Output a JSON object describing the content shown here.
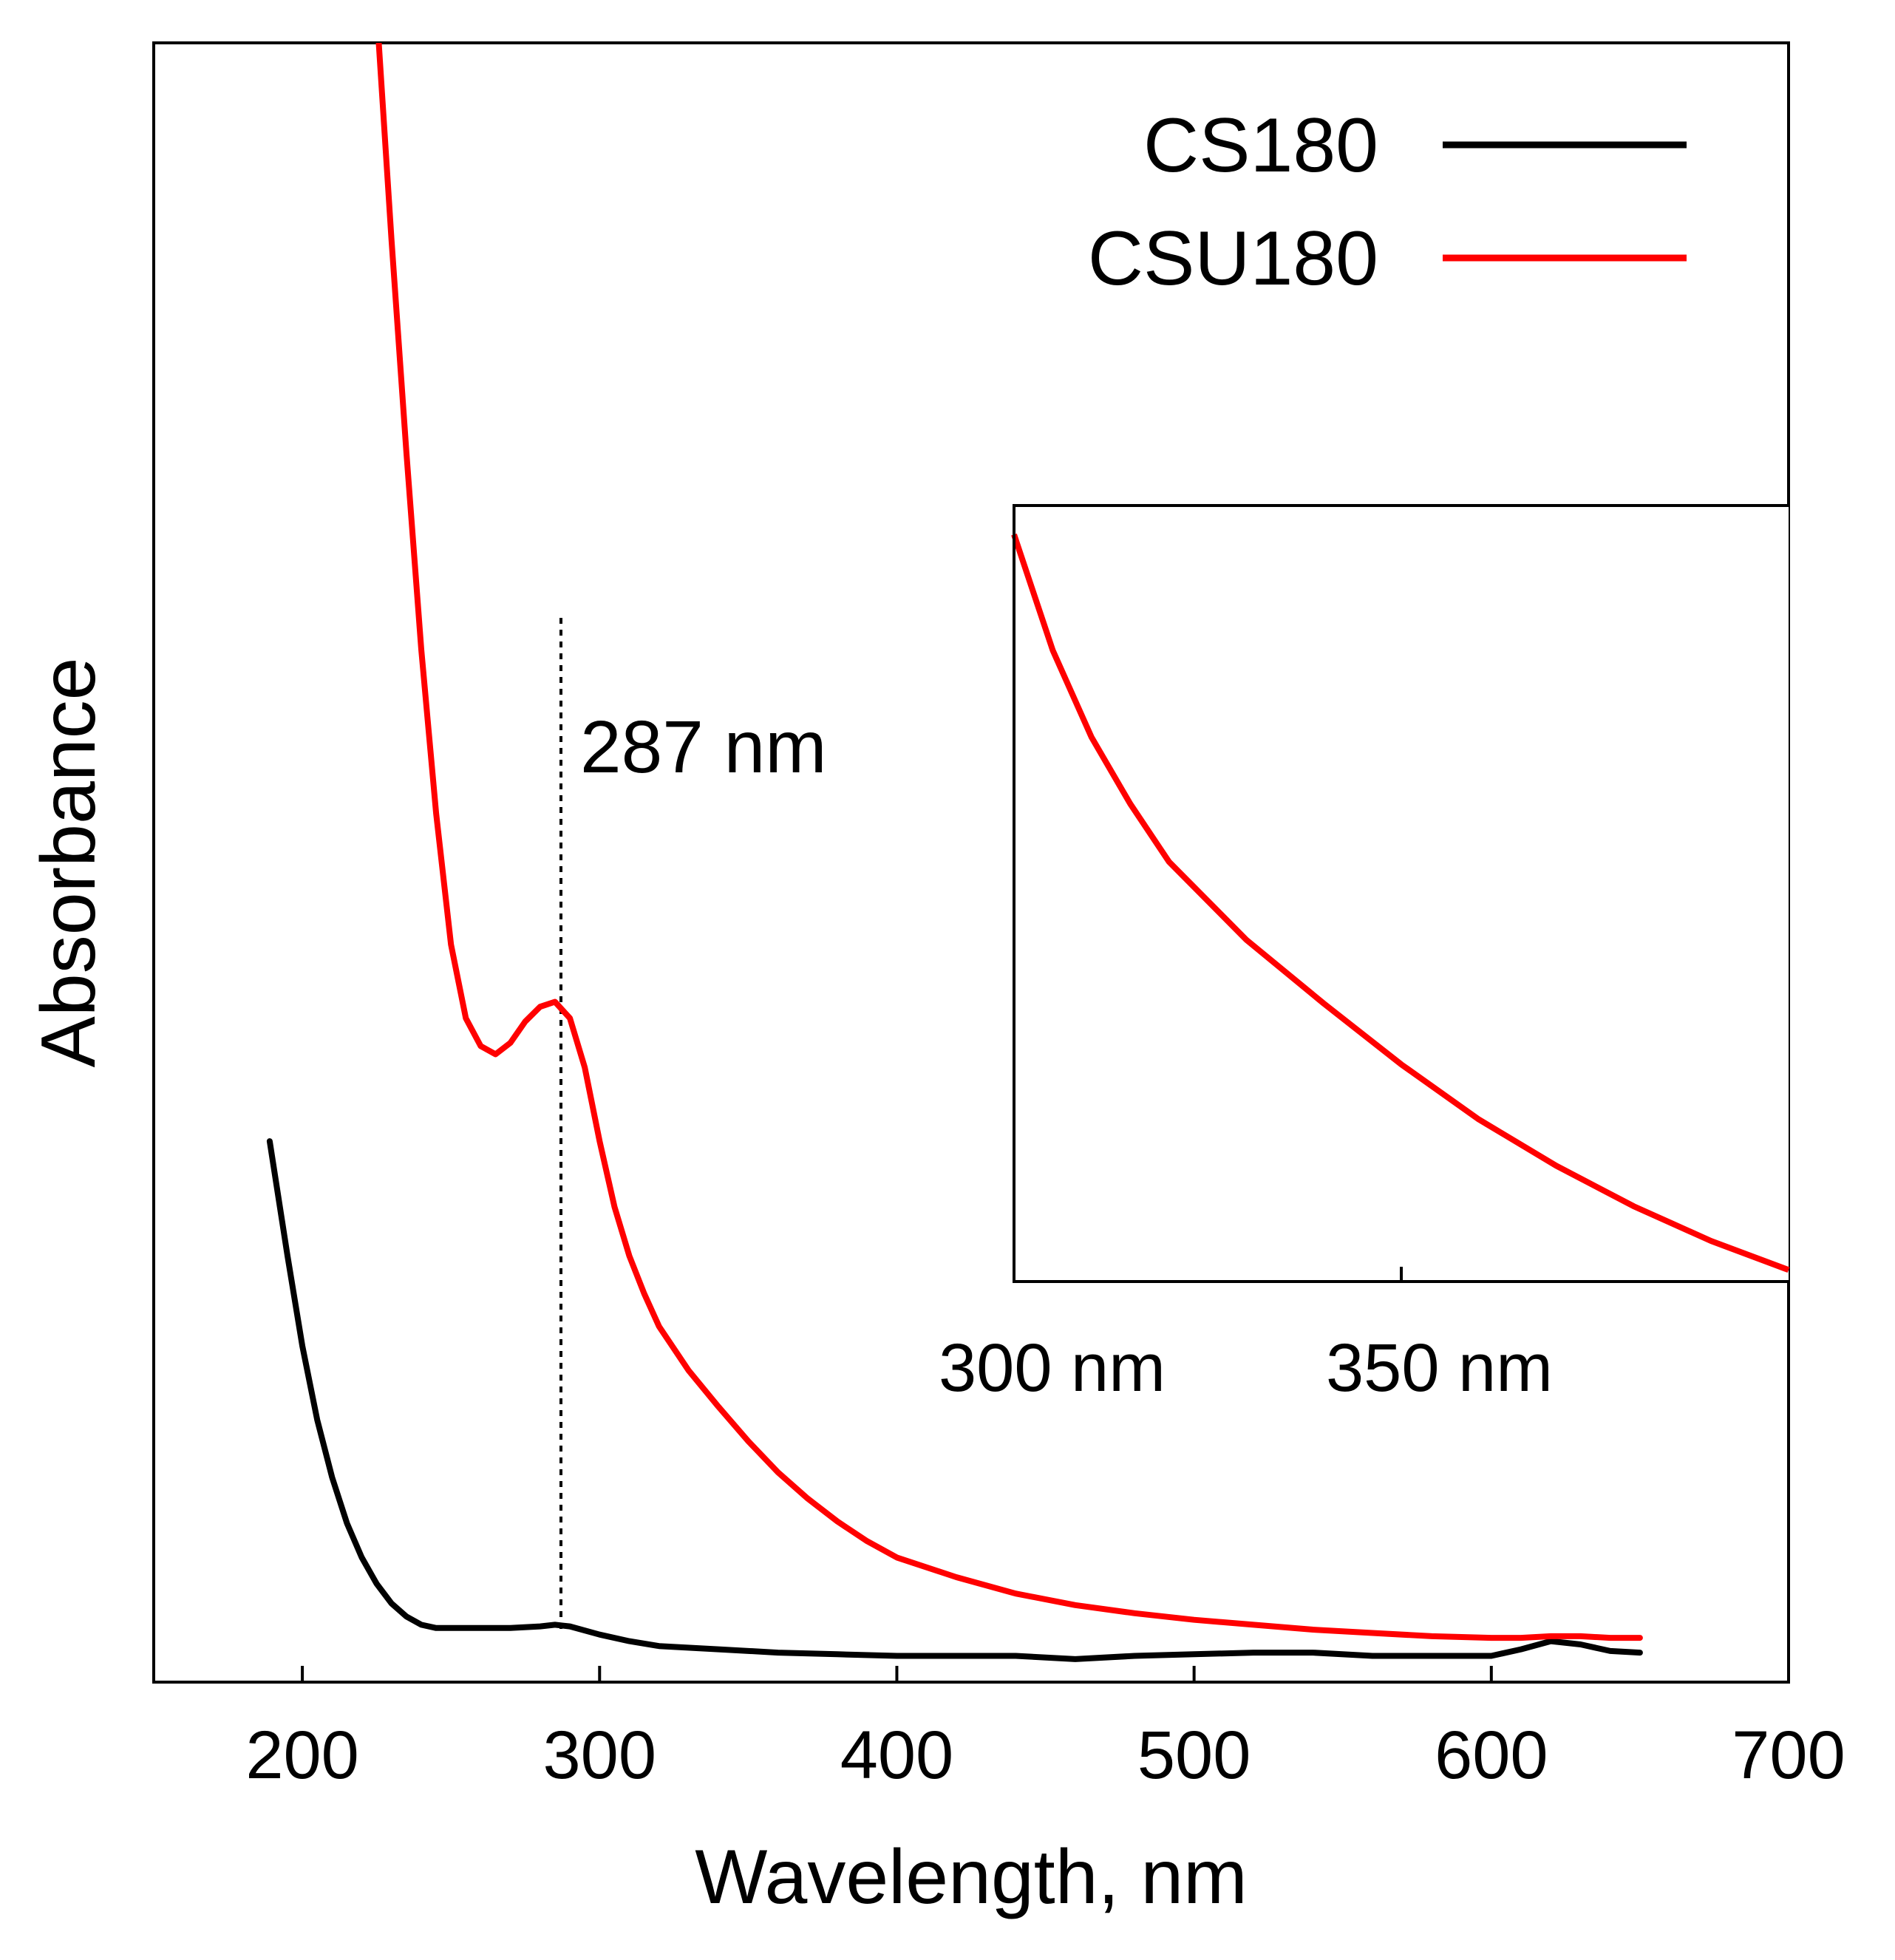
{
  "chart_data": {
    "type": "line",
    "title": "",
    "xlabel": "Wavelength, nm",
    "ylabel": "Absorbance",
    "xlim": [
      150,
      700
    ],
    "ylim": [
      0,
      10
    ],
    "x_ticks": [
      200,
      300,
      400,
      500,
      600,
      700
    ],
    "x_tick_labels": [
      "200",
      "300",
      "400",
      "500",
      "600",
      "700"
    ],
    "y_ticks_shown": false,
    "grid": false,
    "legend_position": "top-right",
    "colors": {
      "CS180": "#000000",
      "CSU180": "#ff0000",
      "axes": "#000000"
    },
    "series": [
      {
        "name": "CS180",
        "x": [
          189,
          195,
          200,
          205,
          210,
          215,
          220,
          225,
          230,
          235,
          240,
          245,
          250,
          260,
          270,
          280,
          285,
          290,
          300,
          310,
          320,
          340,
          360,
          380,
          400,
          420,
          440,
          460,
          480,
          500,
          520,
          540,
          560,
          580,
          600,
          610,
          620,
          630,
          640,
          650
        ],
        "y": [
          3.3,
          2.6,
          2.05,
          1.6,
          1.25,
          0.97,
          0.76,
          0.6,
          0.48,
          0.4,
          0.35,
          0.33,
          0.33,
          0.33,
          0.33,
          0.34,
          0.35,
          0.34,
          0.29,
          0.25,
          0.22,
          0.2,
          0.18,
          0.17,
          0.16,
          0.16,
          0.16,
          0.14,
          0.16,
          0.17,
          0.18,
          0.18,
          0.16,
          0.16,
          0.16,
          0.2,
          0.25,
          0.23,
          0.19,
          0.18
        ]
      },
      {
        "name": "CSU180",
        "x": [
          225,
          230,
          235,
          240,
          245,
          250,
          255,
          260,
          265,
          270,
          275,
          280,
          285,
          290,
          295,
          300,
          305,
          310,
          315,
          320,
          330,
          340,
          350,
          360,
          370,
          380,
          390,
          400,
          420,
          440,
          460,
          480,
          500,
          520,
          540,
          560,
          580,
          600,
          610,
          620,
          630,
          640,
          650
        ],
        "y": [
          10.2,
          8.8,
          7.5,
          6.3,
          5.3,
          4.5,
          4.05,
          3.88,
          3.83,
          3.9,
          4.03,
          4.12,
          4.15,
          4.05,
          3.75,
          3.3,
          2.9,
          2.6,
          2.37,
          2.17,
          1.9,
          1.68,
          1.47,
          1.28,
          1.12,
          0.98,
          0.86,
          0.76,
          0.64,
          0.54,
          0.47,
          0.42,
          0.38,
          0.35,
          0.32,
          0.3,
          0.28,
          0.27,
          0.27,
          0.28,
          0.28,
          0.27,
          0.27
        ]
      }
    ],
    "annotations": [
      {
        "text": "287 nm",
        "x": 287
      }
    ],
    "inset": {
      "xlim": [
        300,
        400
      ],
      "x_ticks": [
        300,
        350
      ],
      "x_tick_labels": [
        "300 nm",
        "350 nm"
      ],
      "series_name": "CSU180",
      "x": [
        300,
        305,
        310,
        315,
        320,
        330,
        340,
        350,
        360,
        370,
        380,
        390,
        400
      ],
      "y": [
        3.3,
        2.9,
        2.6,
        2.37,
        2.17,
        1.9,
        1.68,
        1.47,
        1.28,
        1.12,
        0.98,
        0.86,
        0.76
      ],
      "ylim": [
        0.72,
        3.4
      ]
    }
  }
}
